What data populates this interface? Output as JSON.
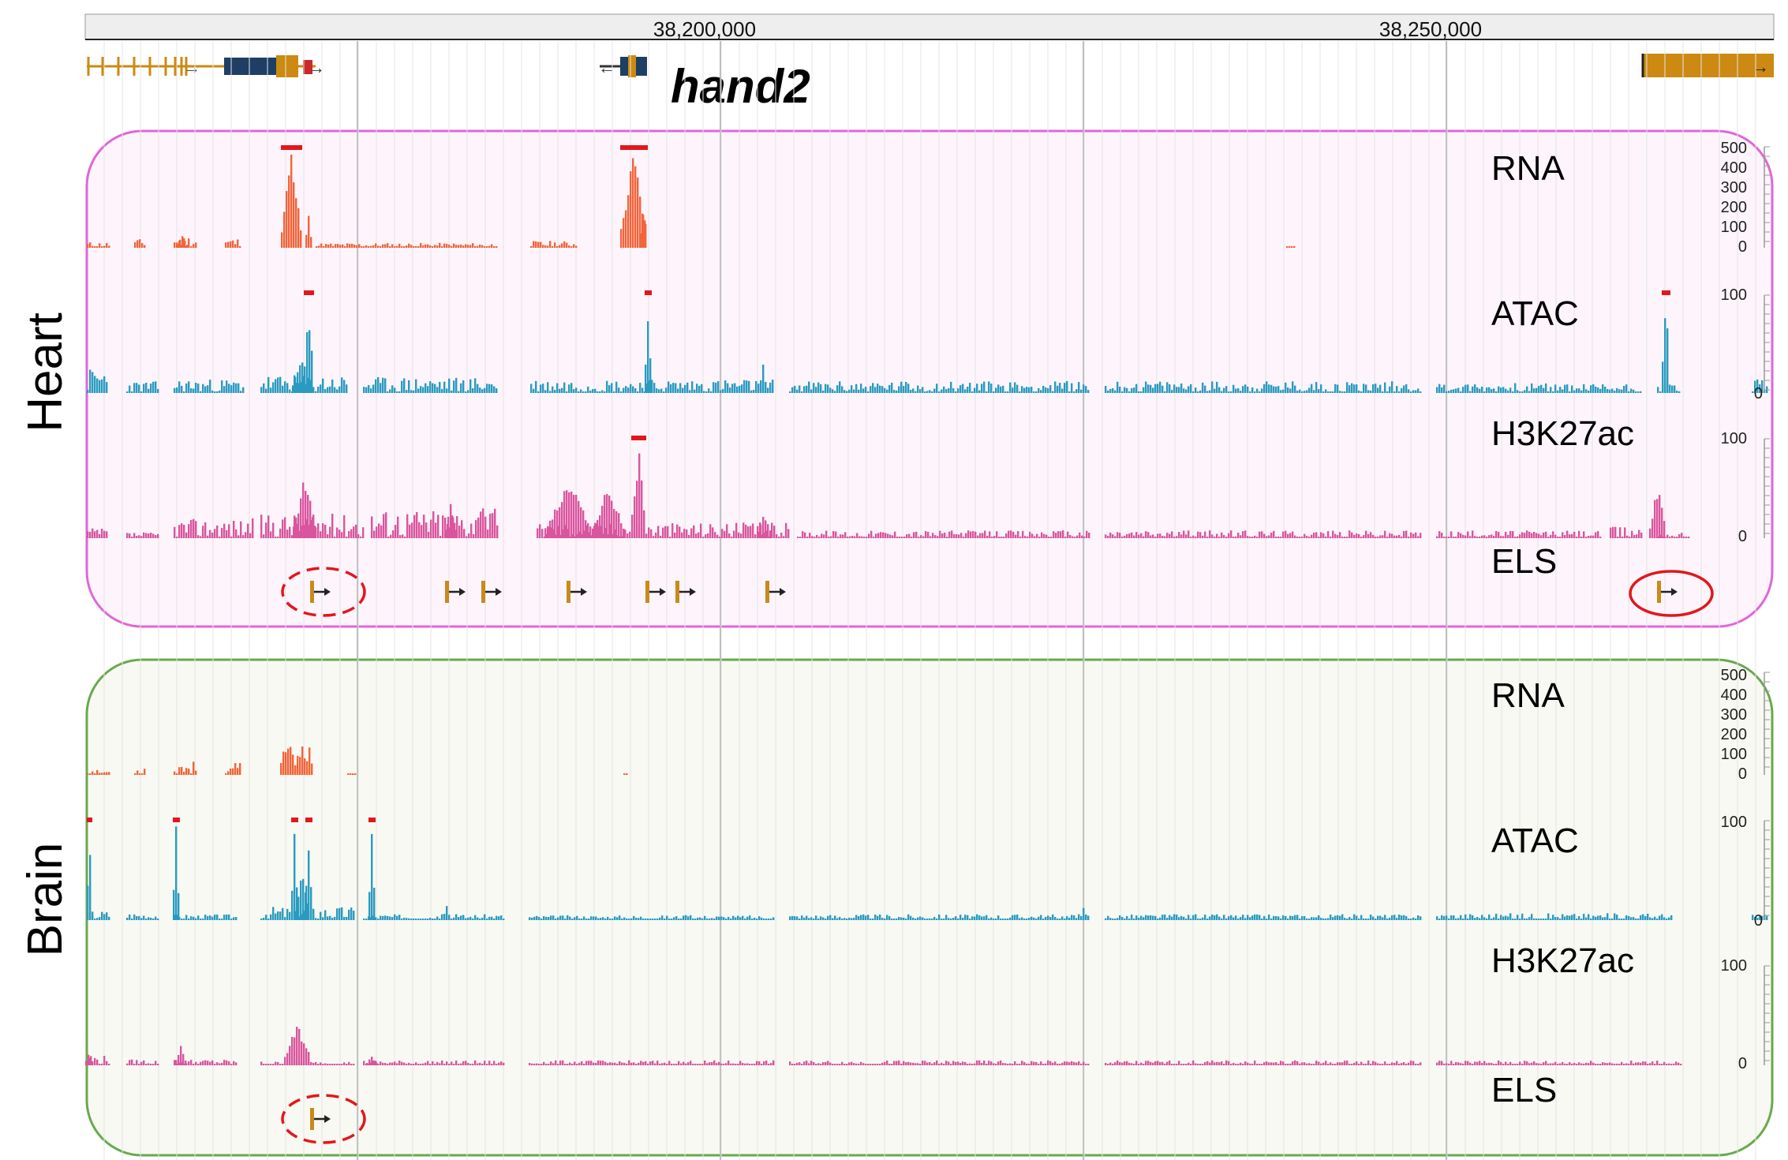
{
  "ruler": {
    "ticks": [
      "38,200,000",
      "38,250,000"
    ]
  },
  "gene": {
    "label": "hand2"
  },
  "panels": [
    {
      "id": "heart",
      "label": "Heart",
      "tracks": [
        {
          "key": "rna",
          "label": "RNA",
          "scale": [
            "500",
            "400",
            "300",
            "200",
            "100",
            "0"
          ]
        },
        {
          "key": "atac",
          "label": "ATAC",
          "scale": [
            "100",
            "0"
          ]
        },
        {
          "key": "h3k27ac",
          "label": "H3K27ac",
          "scale": [
            "100",
            "0"
          ]
        },
        {
          "key": "els",
          "label": "ELS",
          "scale": []
        }
      ]
    },
    {
      "id": "brain",
      "label": "Brain",
      "tracks": [
        {
          "key": "rna",
          "label": "RNA",
          "scale": [
            "500",
            "400",
            "300",
            "200",
            "100",
            "0"
          ]
        },
        {
          "key": "atac",
          "label": "ATAC",
          "scale": [
            "100",
            "0"
          ]
        },
        {
          "key": "h3k27ac",
          "label": "H3K27ac",
          "scale": [
            "100",
            "0"
          ]
        },
        {
          "key": "els",
          "label": "ELS",
          "scale": []
        }
      ]
    }
  ],
  "colors": {
    "rna": "#f2643a",
    "atac": "#2a9bc0",
    "h3k27ac": "#d9559e",
    "els": "#c9891c",
    "clip": "#e3161d",
    "gene": "#cc8a12",
    "gene_dark": "#1e3f63",
    "heart_border": "#e066d8",
    "heart_fill": "#fdf5fb",
    "brain_border": "#6aa84f",
    "brain_fill": "#f7f9f2",
    "highlight": "#e3161d"
  }
}
